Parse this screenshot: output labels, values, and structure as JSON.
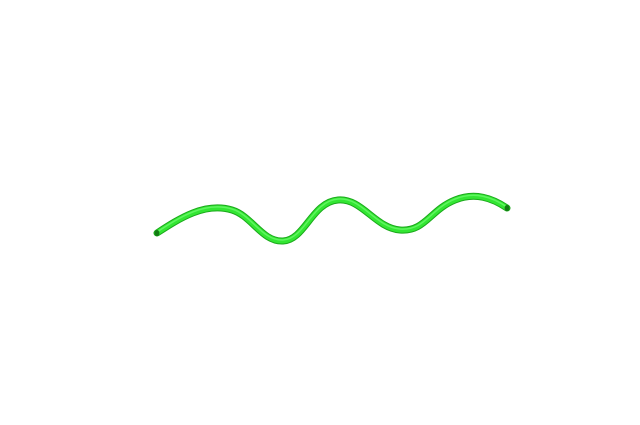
{
  "scene": {
    "background_color": "#ffffff",
    "object": {
      "kind": "coil tube",
      "color": "#33e633",
      "shadow_color": "#1aa81a",
      "highlight_color": "#7dff7d",
      "end_cap_color": "#137a13"
    }
  }
}
